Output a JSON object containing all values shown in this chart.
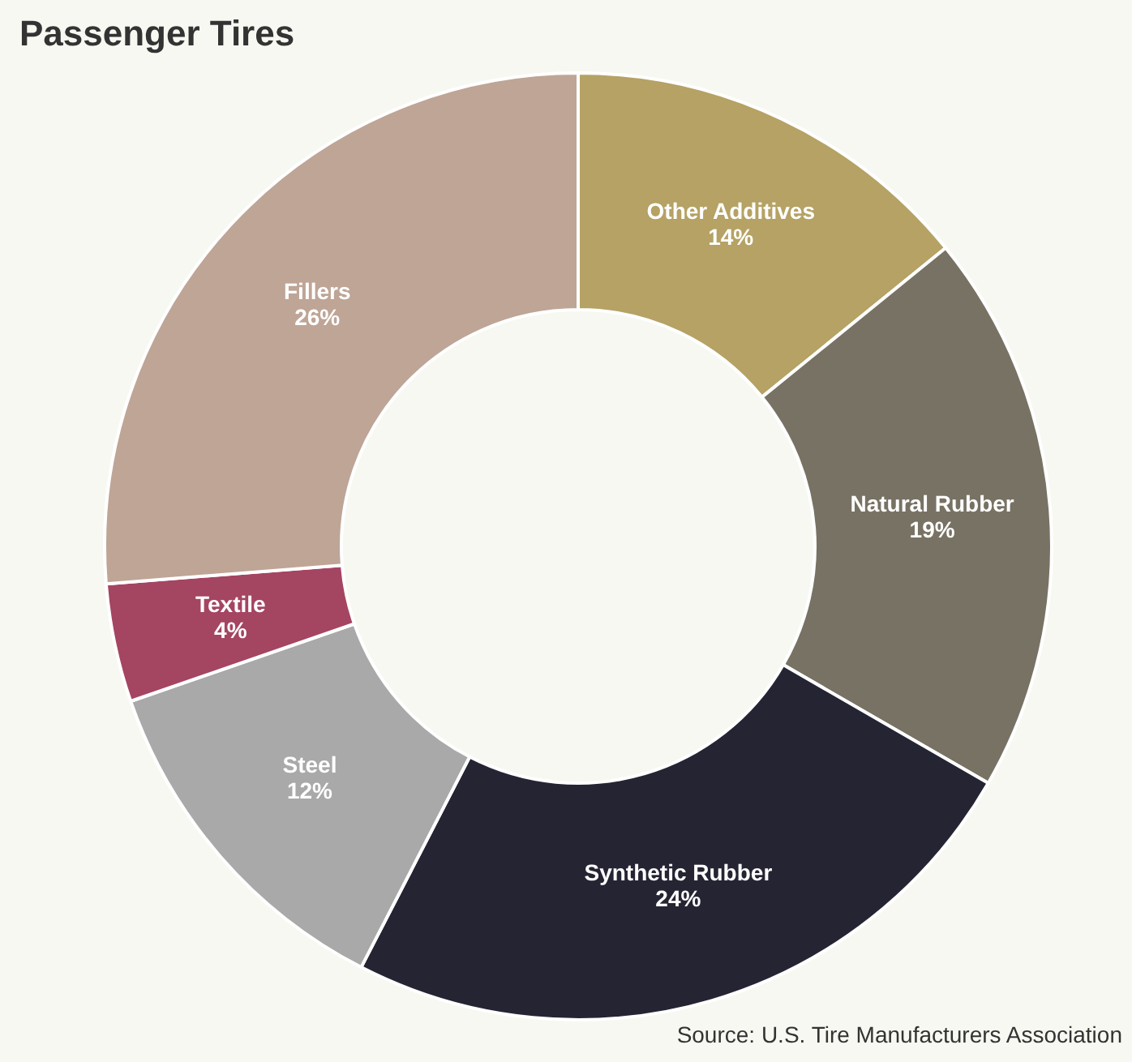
{
  "chart_data": {
    "type": "donut",
    "title": "Passenger Tires",
    "categories": [
      "Other Additives",
      "Natural Rubber",
      "Synthetic Rubber",
      "Steel",
      "Textile",
      "Fillers"
    ],
    "values": [
      14,
      19,
      24,
      12,
      4,
      26
    ],
    "value_labels": [
      "14%",
      "19%",
      "24%",
      "12%",
      "4%",
      "26%"
    ],
    "colors": [
      "#b5a264",
      "#787264",
      "#252433",
      "#a9a9a9",
      "#a44562",
      "#bea596"
    ],
    "legend": false,
    "annotations": [
      "Source: U.S. Tire Manufacturers Association"
    ]
  }
}
